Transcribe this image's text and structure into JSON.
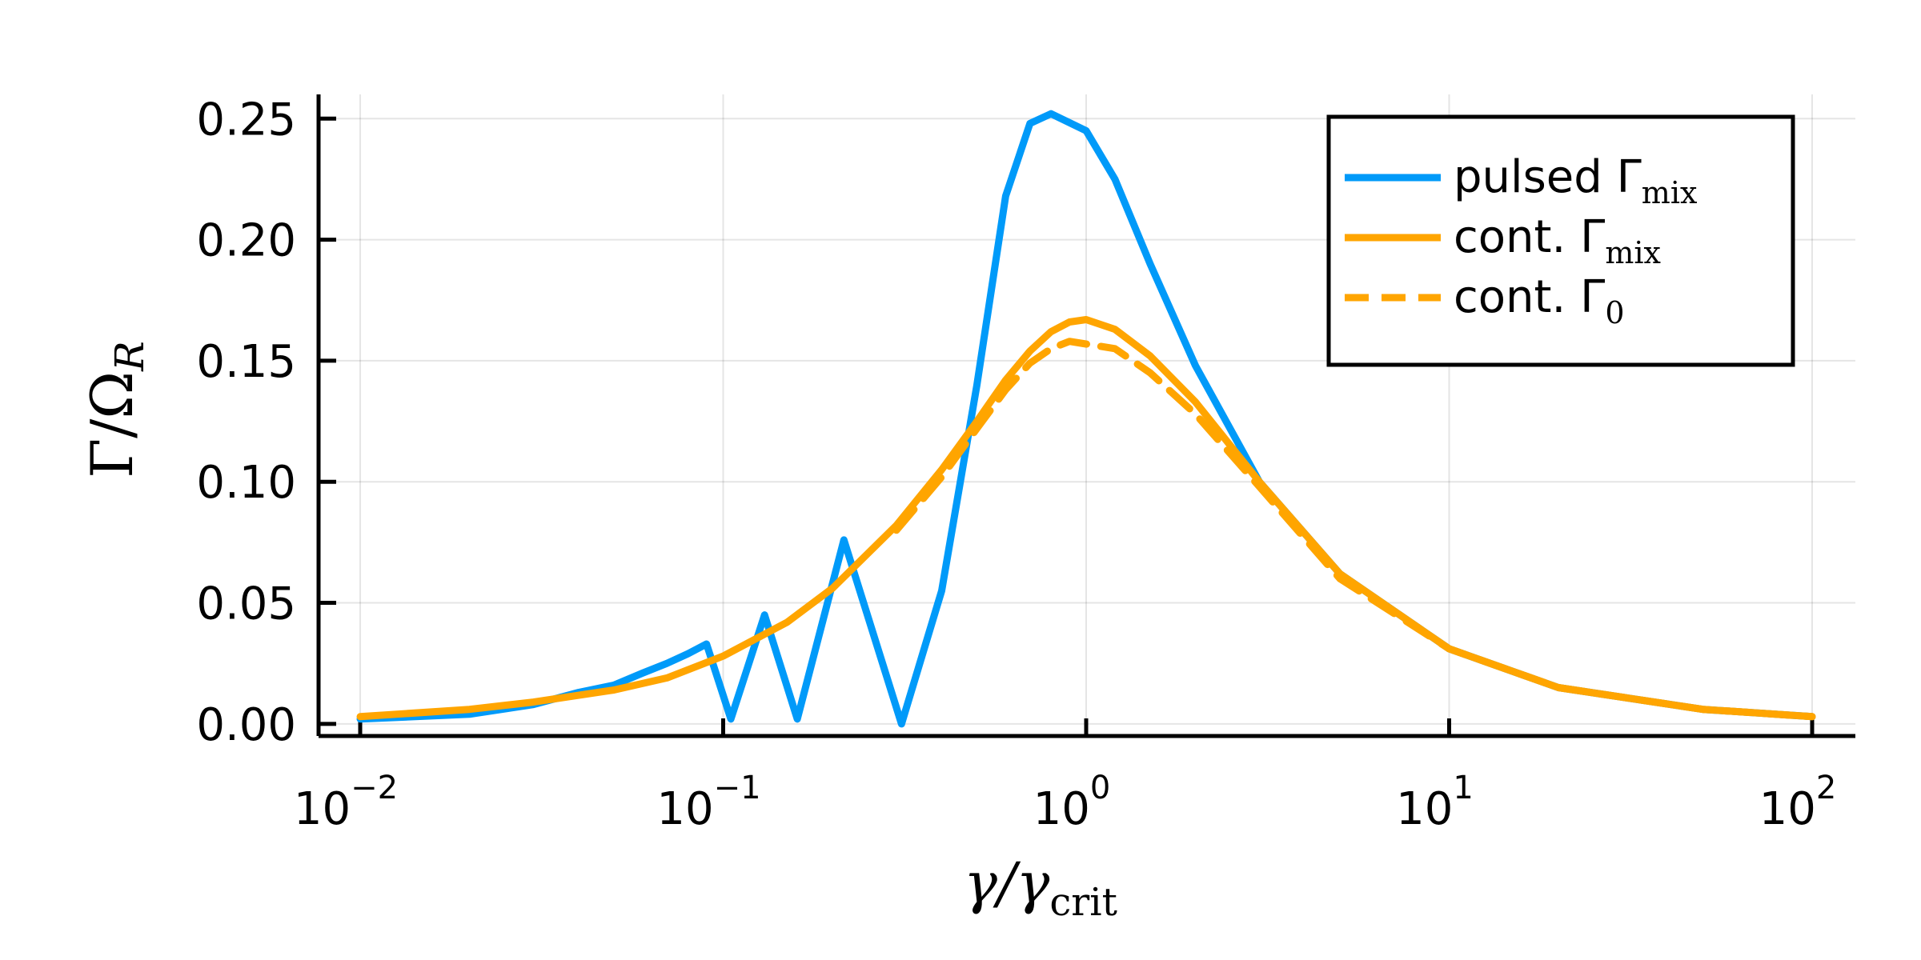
{
  "chart_data": {
    "type": "line",
    "xscale": "log",
    "xlim": [
      0.01,
      100
    ],
    "ylim": [
      -0.005,
      0.26
    ],
    "xlabel": {
      "main": "γ/γ",
      "sub": "crit"
    },
    "ylabel": {
      "main": "Γ/Ω",
      "sub": "R"
    },
    "x_ticks": [
      {
        "value": 0.01,
        "base": "10",
        "exp": "−2"
      },
      {
        "value": 0.1,
        "base": "10",
        "exp": "−1"
      },
      {
        "value": 1,
        "base": "10",
        "exp": "0"
      },
      {
        "value": 10,
        "base": "10",
        "exp": "1"
      },
      {
        "value": 100,
        "base": "10",
        "exp": "2"
      }
    ],
    "y_ticks": [
      {
        "value": 0.0,
        "label": "0.00"
      },
      {
        "value": 0.05,
        "label": "0.05"
      },
      {
        "value": 0.1,
        "label": "0.10"
      },
      {
        "value": 0.15,
        "label": "0.15"
      },
      {
        "value": 0.2,
        "label": "0.20"
      },
      {
        "value": 0.25,
        "label": "0.25"
      }
    ],
    "grid": true,
    "legend_position": "top-right",
    "series": [
      {
        "name": "pulsed Γ",
        "name_sub": "mix",
        "color": "#009AF9",
        "style": "solid",
        "x": [
          0.01,
          0.02,
          0.03,
          0.04,
          0.05,
          0.06,
          0.07,
          0.08,
          0.09,
          0.105,
          0.13,
          0.16,
          0.215,
          0.31,
          0.4,
          0.5,
          0.6,
          0.7,
          0.8,
          1.0,
          1.2,
          1.5,
          2.0,
          3.0,
          5.0,
          10,
          20,
          50,
          100
        ],
        "y": [
          0.002,
          0.004,
          0.008,
          0.013,
          0.016,
          0.021,
          0.025,
          0.029,
          0.033,
          0.002,
          0.045,
          0.002,
          0.076,
          0.0,
          0.055,
          0.14,
          0.218,
          0.248,
          0.252,
          0.245,
          0.225,
          0.19,
          0.148,
          0.1,
          0.062,
          0.031,
          0.015,
          0.006,
          0.003
        ]
      },
      {
        "name": "cont. Γ",
        "name_sub": "mix",
        "color": "#FFA500",
        "style": "solid",
        "x": [
          0.01,
          0.02,
          0.03,
          0.05,
          0.07,
          0.1,
          0.15,
          0.2,
          0.3,
          0.4,
          0.5,
          0.6,
          0.7,
          0.8,
          0.9,
          1.0,
          1.2,
          1.5,
          2.0,
          3.0,
          5.0,
          10,
          20,
          50,
          100
        ],
        "y": [
          0.003,
          0.006,
          0.009,
          0.014,
          0.019,
          0.028,
          0.042,
          0.056,
          0.082,
          0.105,
          0.125,
          0.142,
          0.154,
          0.162,
          0.166,
          0.167,
          0.163,
          0.152,
          0.133,
          0.1,
          0.062,
          0.031,
          0.015,
          0.006,
          0.003
        ]
      },
      {
        "name": "cont. Γ",
        "name_sub": "0",
        "color": "#FFA500",
        "style": "dashed",
        "x": [
          0.3,
          0.4,
          0.5,
          0.6,
          0.7,
          0.8,
          0.9,
          1.2,
          1.5,
          2.0,
          3.0,
          5.0,
          10,
          20,
          50,
          100
        ],
        "y": [
          0.08,
          0.102,
          0.122,
          0.138,
          0.149,
          0.155,
          0.158,
          0.155,
          0.145,
          0.128,
          0.098,
          0.06,
          0.031,
          0.015,
          0.006,
          0.003
        ]
      }
    ]
  }
}
